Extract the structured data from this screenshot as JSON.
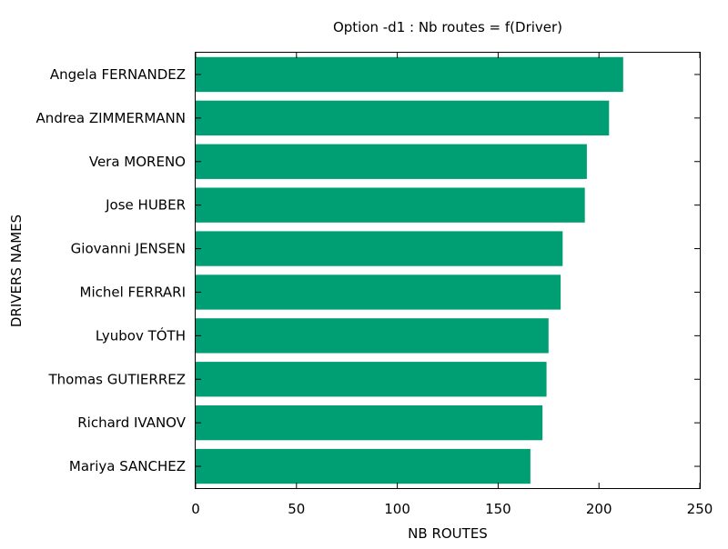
{
  "chart_data": {
    "type": "bar",
    "orientation": "horizontal",
    "title": "Option -d1 : Nb routes = f(Driver)",
    "xlabel": "NB ROUTES",
    "ylabel": "DRIVERS NAMES",
    "categories": [
      "Angela FERNANDEZ",
      "Andrea ZIMMERMANN",
      "Vera MORENO",
      "Jose HUBER",
      "Giovanni JENSEN",
      "Michel FERRARI",
      "Lyubov TÓTH",
      "Thomas GUTIERREZ",
      "Richard IVANOV",
      "Mariya SANCHEZ"
    ],
    "values": [
      212,
      205,
      194,
      193,
      182,
      181,
      175,
      174,
      172,
      166
    ],
    "xlim": [
      0,
      250
    ],
    "xticks": [
      "0",
      "50",
      "100",
      "150",
      "200",
      "250"
    ],
    "grid": false,
    "bar_color": "#009E73"
  }
}
